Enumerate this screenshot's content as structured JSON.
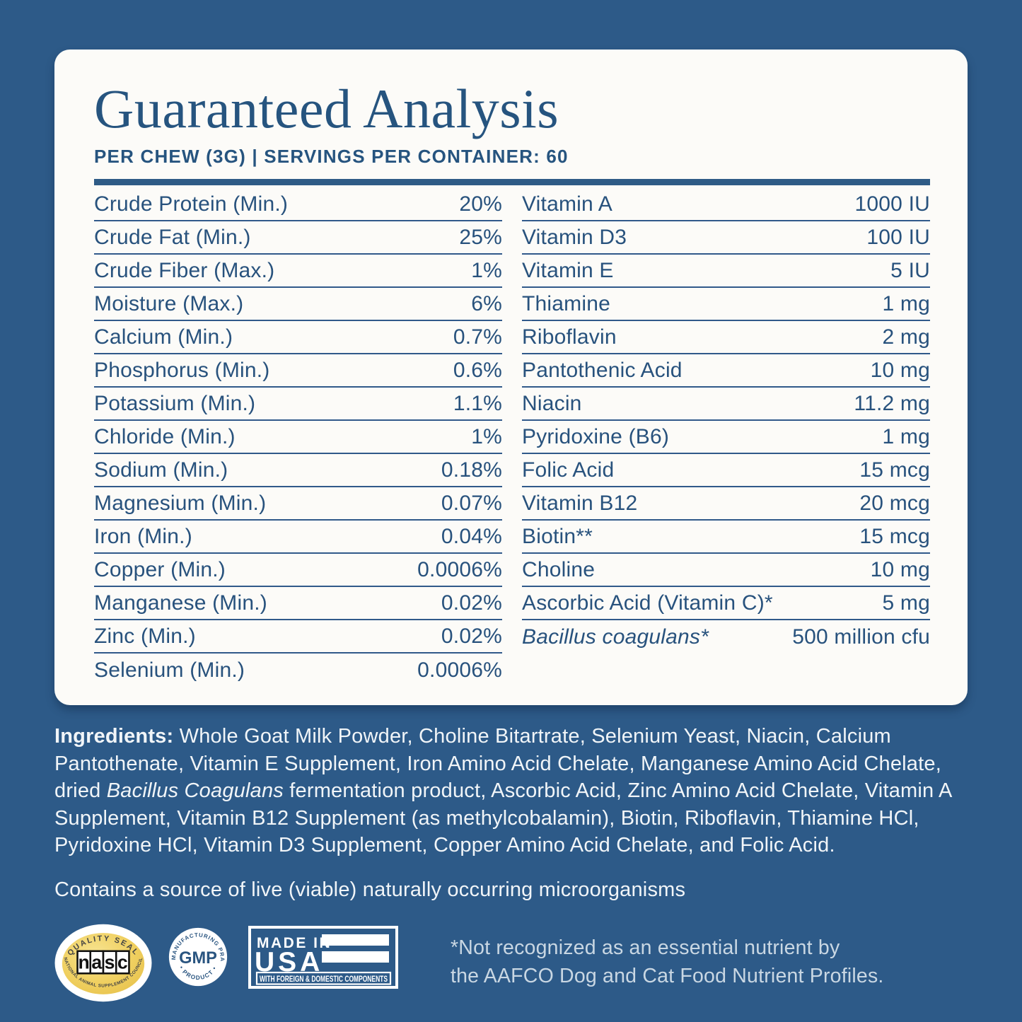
{
  "header": {
    "title": "Guaranteed Analysis",
    "subtitle": "PER CHEW (3G) | SERVINGS PER CONTAINER: 60"
  },
  "analysis": {
    "left": [
      {
        "label": "Crude Protein (Min.)",
        "value": "20%"
      },
      {
        "label": "Crude Fat (Min.)",
        "value": "25%"
      },
      {
        "label": "Crude Fiber (Max.)",
        "value": "1%"
      },
      {
        "label": "Moisture (Max.)",
        "value": "6%"
      },
      {
        "label": "Calcium (Min.)",
        "value": "0.7%"
      },
      {
        "label": "Phosphorus (Min.)",
        "value": "0.6%"
      },
      {
        "label": "Potassium (Min.)",
        "value": "1.1%"
      },
      {
        "label": "Chloride (Min.)",
        "value": "1%"
      },
      {
        "label": "Sodium (Min.)",
        "value": "0.18%"
      },
      {
        "label": "Magnesium (Min.)",
        "value": "0.07%"
      },
      {
        "label": "Iron (Min.)",
        "value": "0.04%"
      },
      {
        "label": "Copper (Min.)",
        "value": "0.0006%"
      },
      {
        "label": "Manganese (Min.)",
        "value": "0.02%"
      },
      {
        "label": "Zinc (Min.)",
        "value": "0.02%"
      },
      {
        "label": "Selenium (Min.)",
        "value": "0.0006%"
      }
    ],
    "right": [
      {
        "label": "Vitamin A",
        "value": "1000 IU"
      },
      {
        "label": "Vitamin D3",
        "value": "100 IU"
      },
      {
        "label": "Vitamin E",
        "value": "5 IU"
      },
      {
        "label": "Thiamine",
        "value": "1 mg"
      },
      {
        "label": "Riboflavin",
        "value": "2 mg"
      },
      {
        "label": "Pantothenic Acid",
        "value": "10 mg"
      },
      {
        "label": "Niacin",
        "value": "11.2 mg"
      },
      {
        "label": "Pyridoxine (B6)",
        "value": "1 mg"
      },
      {
        "label": "Folic Acid",
        "value": "15 mcg"
      },
      {
        "label": "Vitamin B12",
        "value": "20 mcg"
      },
      {
        "label": "Biotin**",
        "value": "15 mcg"
      },
      {
        "label": "Choline",
        "value": "10 mg"
      },
      {
        "label": "Ascorbic Acid (Vitamin C)*",
        "value": "5 mg"
      },
      {
        "label": "Bacillus coagulans*",
        "value": "500 million cfu",
        "italic": true
      }
    ]
  },
  "ingredients": {
    "segments": [
      {
        "b": "Ingredients:"
      },
      {
        "t": " Whole Goat Milk Powder, Choline Bitartrate, Selenium Yeast, Niacin, Calcium Pantothenate, Vitamin E Supplement, Iron Amino Acid Chelate, Manganese Amino Acid Chelate, dried "
      },
      {
        "i": "Bacillus Coagulans"
      },
      {
        "t": " fermentation product, Ascorbic Acid, Zinc Amino Acid Chelate, Vitamin A Supplement, Vitamin B12 Supplement (as methylcobalamin), Biotin, Riboflavin, Thiamine HCl, Pyridoxine HCl, Vitamin D3 Supplement, Copper Amino Acid Chelate, and Folic Acid."
      }
    ]
  },
  "contains_note": "Contains a source of live (viable) naturally occurring microorganisms",
  "badges": {
    "nasc": {
      "arc_top": "QUALITY SEAL",
      "letters": [
        "n",
        "a",
        "s",
        "c"
      ],
      "arc_bottom": "NATIONAL ANIMAL SUPPLEMENT COUNCIL"
    },
    "gmp": {
      "ring_top": "GOOD MANUFACTURING PRACTICE",
      "ring_bottom": "• PRODUCT •",
      "center": "GMP"
    },
    "usa": {
      "line1": "MADE IN",
      "line2": "USA",
      "strip": "WITH FOREIGN & DOMESTIC COMPONENTS"
    }
  },
  "footnote": {
    "line1": "*Not recognized as an essential nutrient by",
    "line2": "the AAFCO Dog and Cat Food Nutrient Profiles."
  },
  "colors": {
    "background": "#2d5a88",
    "card": "#fcfbf8",
    "ink": "#28527d",
    "light_text": "#f1f5f8",
    "footnote_text": "#c9d7e3",
    "nasc_gold": "#f0d061"
  }
}
